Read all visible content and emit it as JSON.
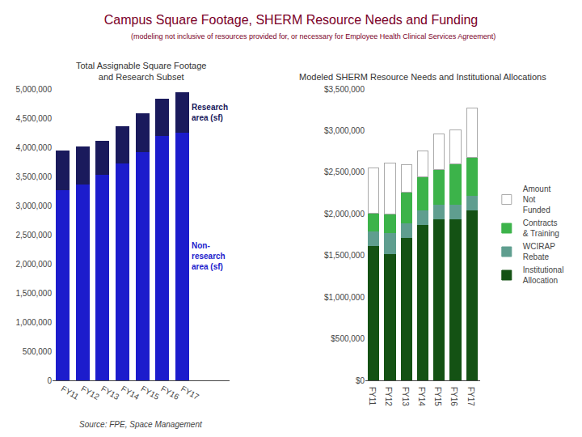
{
  "title": "Campus Square Footage, SHERM Resource Needs and Funding",
  "subtitle": "(modeling not inclusive of resources provided for, or necessary for Employee Health Clinical Services Agreement)",
  "chart_data": [
    {
      "type": "bar",
      "stacked": true,
      "title": "Total Assignable Square Footage\nand Research Subset",
      "categories": [
        "FY11",
        "FY12",
        "FY13",
        "FY14",
        "FY15",
        "FY16",
        "FY17"
      ],
      "series": [
        {
          "name": "Non-\nresearch\narea (sf)",
          "color": "#1C1CCC",
          "values": [
            3270000,
            3370000,
            3530000,
            3730000,
            3930000,
            4200000,
            4260000
          ]
        },
        {
          "name": "Research\narea (sf)",
          "color": "#1A1A5C",
          "values": [
            670000,
            640000,
            580000,
            620000,
            640000,
            630000,
            680000
          ]
        }
      ],
      "ylim": [
        0,
        5000000
      ],
      "yticks": [
        0,
        {
          "value": 500000,
          "label": "500,000"
        },
        {
          "value": 1000000,
          "label": "1,000,000"
        },
        {
          "value": 1500000,
          "label": "1,500,000"
        },
        {
          "value": 2000000,
          "label": "2,000,000"
        },
        {
          "value": 2500000,
          "label": "2,500,000"
        },
        {
          "value": 3000000,
          "label": "3,000,000"
        },
        {
          "value": 3500000,
          "label": "3,500,000"
        },
        {
          "value": 4000000,
          "label": "4,000,000"
        },
        {
          "value": 4500000,
          "label": "4,500,000"
        },
        {
          "value": 5000000,
          "label": "5,000,000"
        }
      ],
      "grid": false,
      "annotations": [
        {
          "text": "Source: FPE, Space Management"
        }
      ]
    },
    {
      "type": "bar",
      "stacked": true,
      "title": "Modeled SHERM Resource Needs and Institutional Allocations",
      "categories": [
        "FY11",
        "FY12",
        "FY13",
        "FY14",
        "FY15",
        "FY16",
        "FY17"
      ],
      "series": [
        {
          "name": "Institutional\nAllocation",
          "color": "#145214",
          "values": [
            1620000,
            1520000,
            1720000,
            1870000,
            1940000,
            1940000,
            2050000
          ]
        },
        {
          "name": "WCIRAP\nRebate",
          "color": "#5F9E8F",
          "values": [
            170000,
            250000,
            175000,
            175000,
            175000,
            175000,
            175000
          ]
        },
        {
          "name": "Contracts\n& Training",
          "color": "#3CB34A",
          "values": [
            220000,
            230000,
            370000,
            400000,
            420000,
            490000,
            450000
          ]
        },
        {
          "name": "Amount\nNot\nFunded",
          "color": "#FFFFFF",
          "values": [
            540000,
            610000,
            330000,
            310000,
            430000,
            400000,
            600000
          ]
        }
      ],
      "ylim": [
        0,
        3500000
      ],
      "yticks": [
        {
          "value": 0,
          "label": "$0"
        },
        {
          "value": 500000,
          "label": "$500,000"
        },
        {
          "value": 1000000,
          "label": "$1,000,000"
        },
        {
          "value": 1500000,
          "label": "$1,500,000"
        },
        {
          "value": 2000000,
          "label": "$2,000,000"
        },
        {
          "value": 2500000,
          "label": "$2,500,000"
        },
        {
          "value": 3000000,
          "label": "$3,000,000"
        },
        {
          "value": 3500000,
          "label": "$3,500,000"
        }
      ],
      "grid": false,
      "legend": "right"
    }
  ]
}
